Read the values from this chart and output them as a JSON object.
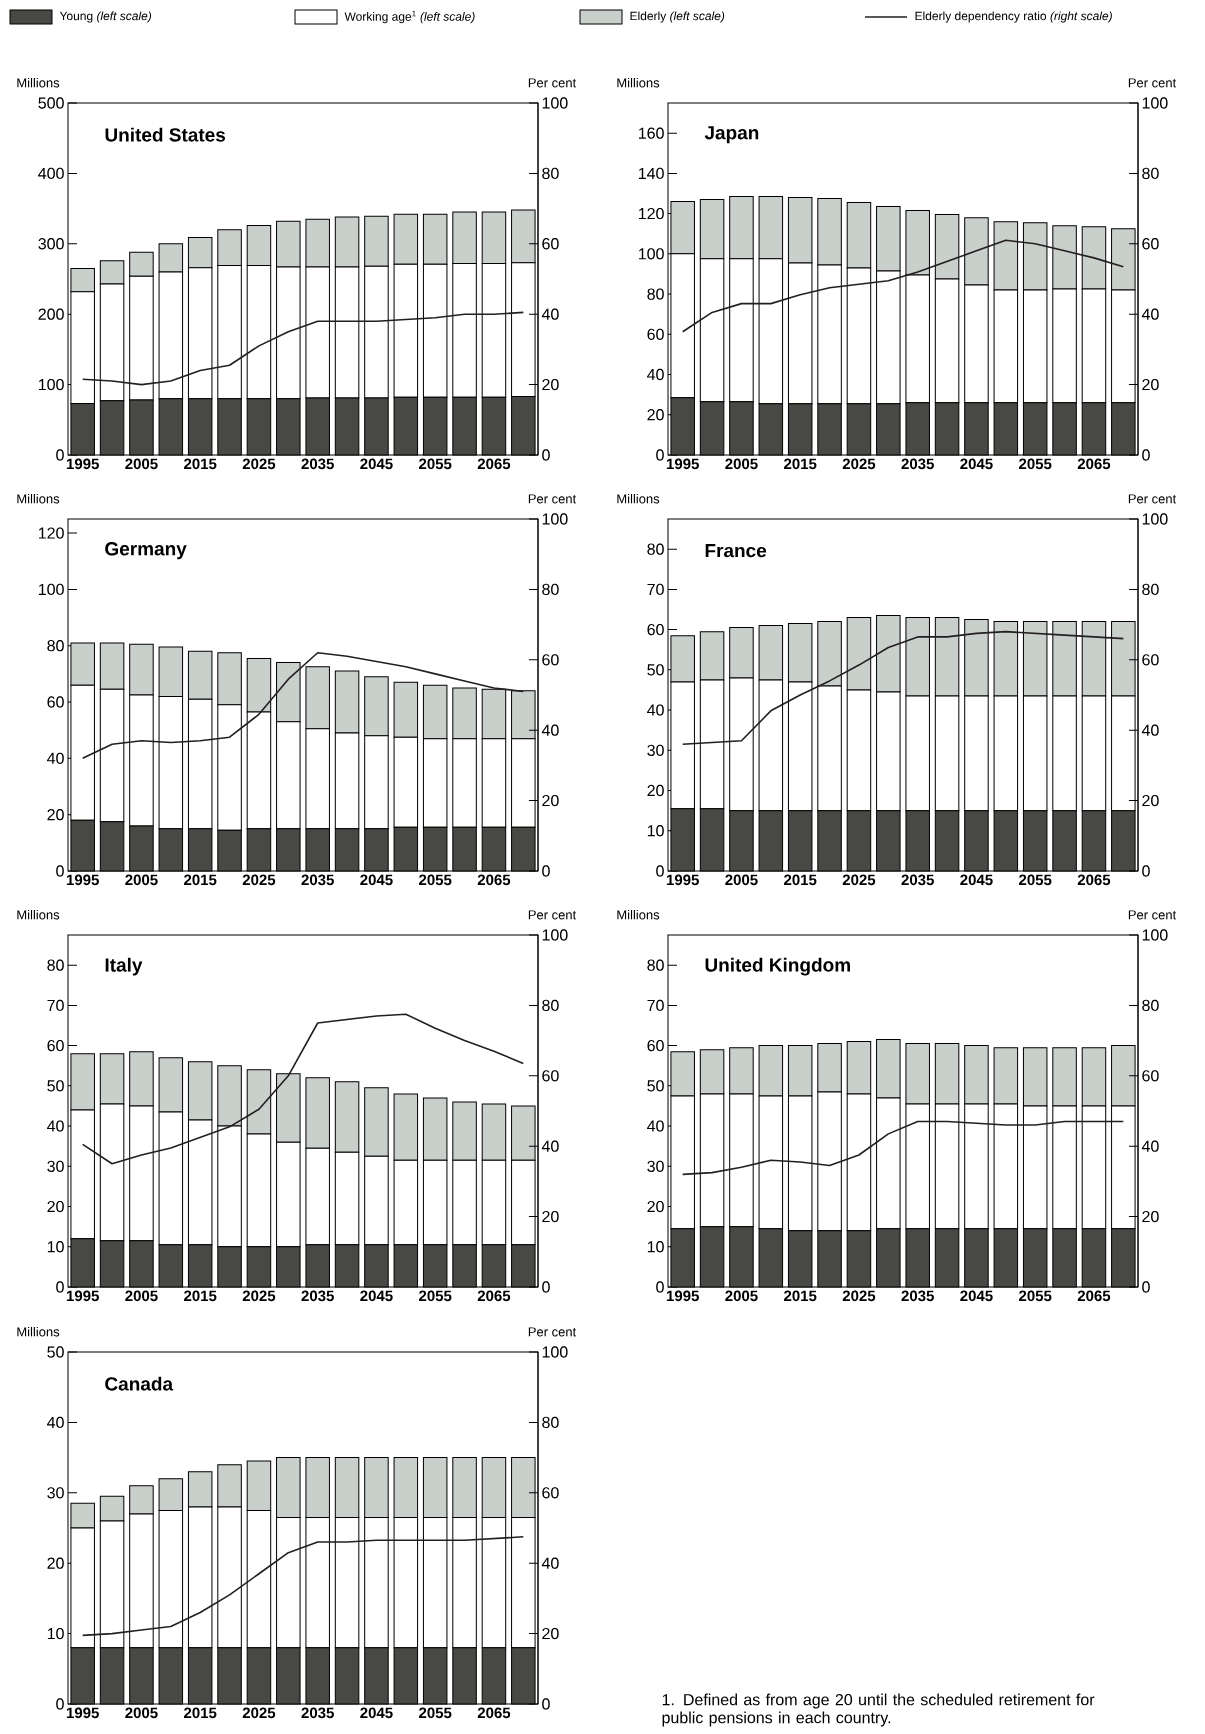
{
  "chart_data": [
    {
      "type": "bar",
      "title": "United States",
      "ylabel": "Millions",
      "y2label": "Per cent",
      "stacked": true,
      "legend": "top",
      "categories": [
        "1995",
        null,
        "2005",
        null,
        "2015",
        null,
        "2025",
        null,
        "2035",
        null,
        "2045",
        null,
        "2055",
        null,
        "2065",
        null
      ],
      "ylim": [
        0,
        500
      ],
      "yticks": [
        0,
        100,
        200,
        300,
        400,
        500
      ],
      "y2lim": [
        0,
        100
      ],
      "y2ticks": [
        0,
        20,
        40,
        60,
        80,
        100
      ],
      "series": [
        {
          "name": "Young *(left scale)*",
          "color": "#484844",
          "values": [
            73,
            77,
            78,
            80,
            80,
            80,
            80,
            80,
            81,
            81,
            81,
            82,
            82,
            82,
            82,
            83
          ]
        },
        {
          "name": "Working age$^{1}$ *(left scale)*",
          "color": "#ffffff",
          "values": [
            159,
            166,
            176,
            180,
            186,
            189,
            189,
            187,
            186,
            186,
            187,
            189,
            189,
            190,
            190,
            190
          ]
        },
        {
          "name": "Elderly *(left scale)*",
          "color": "#c9cfca",
          "values": [
            33,
            33,
            34,
            40,
            43,
            51,
            57,
            65,
            68,
            71,
            71,
            71,
            71,
            73,
            73,
            75
          ]
        },
        {
          "name": "Elderly dependency ratio *(right scale)*",
          "type": "line",
          "axis": "y2",
          "color": "#231f20",
          "values": [
            21.5,
            21,
            20,
            21,
            24,
            25.5,
            31,
            35,
            38,
            38,
            38,
            38.5,
            39,
            40,
            40,
            40.5
          ]
        }
      ]
    },
    {
      "type": "bar",
      "title": "Japan",
      "ylabel": "Millions",
      "y2label": "Per cent",
      "stacked": true,
      "categories": [
        "1995",
        null,
        "2005",
        null,
        "2015",
        null,
        "2025",
        null,
        "2035",
        null,
        "2045",
        null,
        "2055",
        null,
        "2065",
        null
      ],
      "ylim": [
        0,
        175
      ],
      "yticks": [
        0,
        20,
        40,
        60,
        80,
        100,
        120,
        140,
        160
      ],
      "y2lim": [
        0,
        100
      ],
      "y2ticks": [
        0,
        20,
        40,
        60,
        80,
        100
      ],
      "series": [
        {
          "color": "#484844",
          "values": [
            28.5,
            26.5,
            26.5,
            25.5,
            25.5,
            25.5,
            25.5,
            25.5,
            26,
            26,
            26,
            26,
            26,
            26,
            26,
            26
          ]
        },
        {
          "color": "#ffffff",
          "values": [
            71.5,
            71,
            71,
            72,
            70,
            69,
            67.5,
            66,
            63.5,
            61.5,
            58.5,
            56,
            56,
            56.5,
            56.5,
            56
          ]
        },
        {
          "color": "#c9cfca",
          "values": [
            26,
            29.5,
            31,
            31,
            32.5,
            33,
            32.5,
            32,
            32,
            32,
            33.5,
            34,
            33.5,
            31.5,
            31,
            30.5
          ]
        },
        {
          "type": "line",
          "axis": "y2",
          "color": "#231f20",
          "values": [
            35,
            40.5,
            43,
            43,
            45.5,
            47.5,
            48.5,
            49.5,
            52,
            55,
            58,
            61,
            60,
            58,
            56,
            53.5
          ]
        }
      ]
    },
    {
      "type": "bar",
      "title": "Germany",
      "ylabel": "Millions",
      "y2label": "Per cent",
      "stacked": true,
      "categories": [
        "1995",
        null,
        "2005",
        null,
        "2015",
        null,
        "2025",
        null,
        "2035",
        null,
        "2045",
        null,
        "2055",
        null,
        "2065",
        null
      ],
      "ylim": [
        0,
        125
      ],
      "yticks": [
        0,
        20,
        40,
        60,
        80,
        100,
        120
      ],
      "y2lim": [
        0,
        100
      ],
      "y2ticks": [
        0,
        20,
        40,
        60,
        80,
        100
      ],
      "series": [
        {
          "color": "#484844",
          "values": [
            18,
            17.5,
            16,
            15,
            15,
            14.5,
            15,
            15,
            15,
            15,
            15,
            15.5,
            15.5,
            15.5,
            15.5,
            15.5
          ]
        },
        {
          "color": "#ffffff",
          "values": [
            48,
            47,
            46.5,
            47,
            46,
            44.5,
            41.5,
            38,
            35.5,
            34,
            33,
            32,
            31.5,
            31.5,
            31.5,
            31.5
          ]
        },
        {
          "color": "#c9cfca",
          "values": [
            15,
            16.5,
            18,
            17.5,
            17,
            18.5,
            19,
            21,
            22,
            22,
            21,
            19.5,
            19,
            18,
            17.5,
            17
          ]
        },
        {
          "type": "line",
          "axis": "y2",
          "color": "#231f20",
          "values": [
            32,
            36,
            37,
            36.5,
            37,
            38,
            44.5,
            54.5,
            62,
            61,
            59.5,
            58,
            56,
            54,
            52,
            51
          ]
        }
      ]
    },
    {
      "type": "bar",
      "title": "France",
      "ylabel": "Millions",
      "y2label": "Per cent",
      "stacked": true,
      "categories": [
        "1995",
        null,
        "2005",
        null,
        "2015",
        null,
        "2025",
        null,
        "2035",
        null,
        "2045",
        null,
        "2055",
        null,
        "2065",
        null
      ],
      "ylim": [
        0,
        87.5
      ],
      "yticks": [
        0,
        10,
        20,
        30,
        40,
        50,
        60,
        70,
        80
      ],
      "y2lim": [
        0,
        100
      ],
      "y2ticks": [
        0,
        20,
        40,
        60,
        80,
        100
      ],
      "series": [
        {
          "color": "#484844",
          "values": [
            15.5,
            15.5,
            15,
            15,
            15,
            15,
            15,
            15,
            15,
            15,
            15,
            15,
            15,
            15,
            15,
            15
          ]
        },
        {
          "color": "#ffffff",
          "values": [
            31.5,
            32,
            33,
            32.5,
            32,
            31,
            30,
            29.5,
            28.5,
            28.5,
            28.5,
            28.5,
            28.5,
            28.5,
            28.5,
            28.5
          ]
        },
        {
          "color": "#c9cfca",
          "values": [
            11.5,
            12,
            12.5,
            13.5,
            14.5,
            16,
            18,
            19,
            19.5,
            19.5,
            19,
            18.5,
            18.5,
            18.5,
            18.5,
            18.5
          ]
        },
        {
          "type": "line",
          "axis": "y2",
          "color": "#231f20",
          "values": [
            36,
            36.5,
            37,
            45.5,
            50,
            54,
            58.5,
            63.5,
            66.5,
            66.5,
            67.5,
            68,
            67.5,
            67,
            66.5,
            66
          ]
        }
      ]
    },
    {
      "type": "bar",
      "title": "Italy",
      "ylabel": "Millions",
      "y2label": "Per cent",
      "stacked": true,
      "categories": [
        "1995",
        null,
        "2005",
        null,
        "2015",
        null,
        "2025",
        null,
        "2035",
        null,
        "2045",
        null,
        "2055",
        null,
        "2065",
        null
      ],
      "ylim": [
        0,
        87.5
      ],
      "yticks": [
        0,
        10,
        20,
        30,
        40,
        50,
        60,
        70,
        80
      ],
      "y2lim": [
        0,
        100
      ],
      "y2ticks": [
        0,
        20,
        40,
        60,
        80,
        100
      ],
      "series": [
        {
          "color": "#484844",
          "values": [
            12,
            11.5,
            11.5,
            10.5,
            10.5,
            10,
            10,
            10,
            10.5,
            10.5,
            10.5,
            10.5,
            10.5,
            10.5,
            10.5,
            10.5
          ]
        },
        {
          "color": "#ffffff",
          "values": [
            32,
            34,
            33.5,
            33,
            31,
            30,
            28,
            26,
            24,
            23,
            22,
            21,
            21,
            21,
            21,
            21
          ]
        },
        {
          "color": "#c9cfca",
          "values": [
            14,
            12.5,
            13.5,
            13.5,
            14.5,
            15,
            16,
            17,
            17.5,
            17.5,
            17,
            16.5,
            15.5,
            14.5,
            14,
            13.5
          ]
        },
        {
          "type": "line",
          "axis": "y2",
          "color": "#231f20",
          "values": [
            40.5,
            35,
            37.5,
            39.5,
            42.5,
            45.5,
            50.5,
            60,
            75,
            76,
            77,
            77.5,
            73.5,
            70,
            67,
            63.5
          ]
        }
      ]
    },
    {
      "type": "bar",
      "title": "United Kingdom",
      "ylabel": "Millions",
      "y2label": "Per cent",
      "stacked": true,
      "categories": [
        "1995",
        null,
        "2005",
        null,
        "2015",
        null,
        "2025",
        null,
        "2035",
        null,
        "2045",
        null,
        "2055",
        null,
        "2065",
        null
      ],
      "ylim": [
        0,
        87.5
      ],
      "yticks": [
        0,
        10,
        20,
        30,
        40,
        50,
        60,
        70,
        80
      ],
      "y2lim": [
        0,
        100
      ],
      "y2ticks": [
        0,
        20,
        40,
        60,
        80,
        100
      ],
      "series": [
        {
          "color": "#484844",
          "values": [
            14.5,
            15,
            15,
            14.5,
            14,
            14,
            14,
            14.5,
            14.5,
            14.5,
            14.5,
            14.5,
            14.5,
            14.5,
            14.5,
            14.5
          ]
        },
        {
          "color": "#ffffff",
          "values": [
            33,
            33,
            33,
            33,
            33.5,
            34.5,
            34,
            32.5,
            31,
            31,
            31,
            31,
            30.5,
            30.5,
            30.5,
            30.5
          ]
        },
        {
          "color": "#c9cfca",
          "values": [
            11,
            11,
            11.5,
            12.5,
            12.5,
            12,
            13,
            14.5,
            15,
            15,
            14.5,
            14,
            14.5,
            14.5,
            14.5,
            15
          ]
        },
        {
          "type": "line",
          "axis": "y2",
          "color": "#231f20",
          "values": [
            32,
            32.5,
            34,
            36,
            35.5,
            34.5,
            37.5,
            43.5,
            47,
            47,
            46.5,
            46,
            46,
            47,
            47,
            47
          ]
        }
      ]
    },
    {
      "type": "bar",
      "title": "Canada",
      "ylabel": "Millions",
      "y2label": "Per cent",
      "stacked": true,
      "annotations": [
        "1. Defined as from age 20 until the scheduled retirement for public pensions in each country."
      ],
      "categories": [
        "1995",
        null,
        "2005",
        null,
        "2015",
        null,
        "2025",
        null,
        "2035",
        null,
        "2045",
        null,
        "2055",
        null,
        "2065",
        null
      ],
      "ylim": [
        0,
        50
      ],
      "yticks": [
        0,
        10,
        20,
        30,
        40,
        50
      ],
      "y2lim": [
        0,
        100
      ],
      "y2ticks": [
        0,
        20,
        40,
        60,
        80,
        100
      ],
      "series": [
        {
          "color": "#484844",
          "values": [
            8,
            8,
            8,
            8,
            8,
            8,
            8,
            8,
            8,
            8,
            8,
            8,
            8,
            8,
            8,
            8
          ]
        },
        {
          "color": "#ffffff",
          "values": [
            17,
            18,
            19,
            19.5,
            20,
            20,
            19.5,
            18.5,
            18.5,
            18.5,
            18.5,
            18.5,
            18.5,
            18.5,
            18.5,
            18.5
          ]
        },
        {
          "color": "#c9cfca",
          "values": [
            3.5,
            3.5,
            4,
            4.5,
            5,
            6,
            7,
            8.5,
            8.5,
            8.5,
            8.5,
            8.5,
            8.5,
            8.5,
            8.5,
            8.5
          ]
        },
        {
          "type": "line",
          "axis": "y2",
          "color": "#231f20",
          "values": [
            19.5,
            20,
            21,
            22,
            26,
            31,
            37,
            43,
            46,
            46,
            46.5,
            46.5,
            46.5,
            46.5,
            47,
            47.5
          ]
        }
      ]
    }
  ]
}
